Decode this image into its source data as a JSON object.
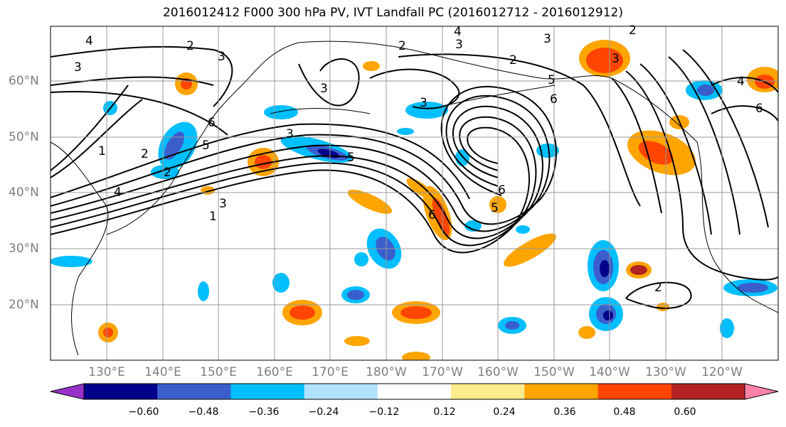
{
  "title": "2016012412 F000 300 hPa PV, IVT Landfall PC (2016012712 - 2016012912)",
  "lat_labels": [
    "60°N",
    "50°N",
    "40°N",
    "30°N",
    "20°N"
  ],
  "lon_labels": [
    "130°E",
    "140°E",
    "150°E",
    "160°E",
    "170°E",
    "180°W",
    "170°W",
    "160°W",
    "150°W",
    "140°W",
    "130°W",
    "120°W"
  ],
  "colorbar": {
    "ticks": [
      "−0.60",
      "−0.48",
      "−0.36",
      "−0.24",
      "−0.12",
      "0.12",
      "0.24",
      "0.36",
      "0.48",
      "0.60"
    ],
    "colors": [
      "#9932cc",
      "#00008b",
      "#3a5fcd",
      "#00bfff",
      "#b0e2ff",
      "#ffffff",
      "#ffec8b",
      "#ffa500",
      "#ff4500",
      "#b22222",
      "#ff82ab"
    ]
  },
  "contour_labels": [
    "4",
    "3",
    "2",
    "3",
    "4",
    "2",
    "3",
    "2",
    "3",
    "3",
    "3",
    "6",
    "3",
    "6",
    "5",
    "3",
    "5",
    "2",
    "1",
    "2",
    "4",
    "3",
    "1",
    "6",
    "6",
    "5",
    "2",
    "5",
    "6",
    "4",
    "2"
  ]
}
